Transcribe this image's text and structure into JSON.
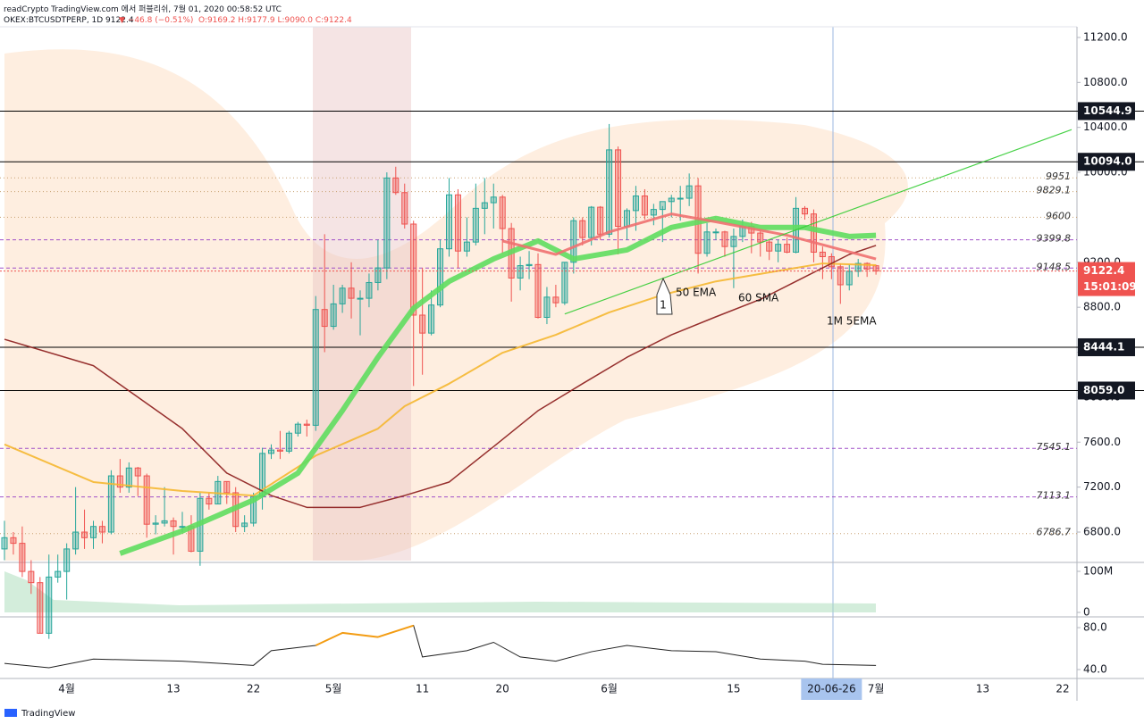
{
  "chart_data": {
    "type": "candlestick",
    "title": "readCrypto TradingView.com 에서 퍼블리쉬, 7월 01, 2020 00:58:52 UTC",
    "symbol": "OKEX:BTCUSDTPERP, 1D 9122.4",
    "change": "▼ −46.8 (−0.51%)",
    "ohlc_text": "O:9169.2 H:9177.9 L:9090.0 C:9122.4",
    "footer": "TradingView",
    "up_color": "#26a69a",
    "down_color": "#ef5350",
    "ylim": [
      6546,
      11295
    ],
    "yticks": [
      {
        "value": 11200,
        "label": "11200.0"
      },
      {
        "value": 10800,
        "label": "10800.0"
      },
      {
        "value": 10400,
        "label": "10400.0"
      },
      {
        "value": 10000,
        "label": "10000.0"
      },
      {
        "value": 9200,
        "label": "9200.0"
      },
      {
        "value": 8800,
        "label": "8800.0"
      },
      {
        "value": 8400,
        "label": "8400.0"
      },
      {
        "value": 8000,
        "label": "8000.0"
      },
      {
        "value": 7600,
        "label": "7600.0"
      },
      {
        "value": 7200,
        "label": "7200.0"
      },
      {
        "value": 6800,
        "label": "6800.0"
      }
    ],
    "categories": [
      null,
      null,
      null,
      null,
      null,
      null,
      null,
      "4월",
      null,
      null,
      null,
      null,
      null,
      null,
      null,
      null,
      null,
      null,
      null,
      "13",
      null,
      null,
      null,
      null,
      null,
      null,
      null,
      null,
      "22",
      null,
      null,
      null,
      null,
      null,
      null,
      null,
      null,
      "5월",
      null,
      null,
      null,
      null,
      null,
      null,
      null,
      null,
      null,
      "11",
      null,
      null,
      null,
      null,
      null,
      null,
      null,
      null,
      "20",
      null,
      null,
      null,
      null,
      null,
      null,
      null,
      null,
      null,
      null,
      null,
      "6월",
      null,
      null,
      null,
      null,
      null,
      null,
      null,
      null,
      null,
      null,
      null,
      null,
      null,
      "15",
      null,
      null,
      null,
      null,
      null,
      null,
      null,
      null,
      null,
      null,
      "20-06-26",
      null,
      null,
      null,
      null,
      "7월",
      null,
      null,
      null,
      null,
      null,
      null,
      null,
      null,
      null,
      null,
      null,
      "13",
      null,
      null,
      null,
      null,
      null,
      null,
      null,
      null,
      "22",
      null
    ],
    "ohlc": [
      [
        6650,
        6900,
        6550,
        6750
      ],
      [
        6750,
        6800,
        6600,
        6700
      ],
      [
        6700,
        6850,
        6400,
        6450
      ],
      [
        6450,
        6550,
        6250,
        6350
      ],
      [
        6350,
        6400,
        5900,
        5900
      ],
      [
        5900,
        6600,
        5850,
        6400
      ],
      [
        6400,
        6600,
        6350,
        6450
      ],
      [
        6450,
        6700,
        6200,
        6650
      ],
      [
        6650,
        7200,
        6600,
        6800
      ],
      [
        6800,
        7000,
        6650,
        6750
      ],
      [
        6750,
        6900,
        6650,
        6850
      ],
      [
        6850,
        6900,
        6700,
        6800
      ],
      [
        6800,
        7350,
        6780,
        7300
      ],
      [
        7300,
        7450,
        7150,
        7200
      ],
      [
        7200,
        7420,
        7150,
        7370
      ],
      [
        7370,
        7380,
        7120,
        7300
      ],
      [
        7300,
        7320,
        6750,
        6870
      ],
      [
        6870,
        6950,
        6780,
        6880
      ],
      [
        6880,
        7200,
        6850,
        6900
      ],
      [
        6900,
        6930,
        6600,
        6850
      ],
      [
        6850,
        6980,
        6800,
        6850
      ],
      [
        6850,
        6950,
        6620,
        6630
      ],
      [
        6630,
        7150,
        6500,
        7100
      ],
      [
        7100,
        7150,
        7000,
        7050
      ],
      [
        7050,
        7300,
        7050,
        7250
      ],
      [
        7250,
        7250,
        7050,
        7150
      ],
      [
        7150,
        7200,
        6800,
        6850
      ],
      [
        6850,
        6950,
        6800,
        6880
      ],
      [
        6880,
        7150,
        6850,
        7120
      ],
      [
        7120,
        7550,
        7000,
        7500
      ],
      [
        7500,
        7580,
        7450,
        7530
      ],
      [
        7530,
        7700,
        7450,
        7520
      ],
      [
        7520,
        7700,
        7500,
        7680
      ],
      [
        7680,
        7780,
        7650,
        7760
      ],
      [
        7760,
        7800,
        7650,
        7750
      ],
      [
        7750,
        8900,
        7700,
        8780
      ],
      [
        8780,
        9450,
        8400,
        8630
      ],
      [
        8630,
        9000,
        8600,
        8830
      ],
      [
        8830,
        9000,
        8750,
        8970
      ],
      [
        8970,
        9200,
        8700,
        8880
      ],
      [
        8880,
        8950,
        8550,
        8880
      ],
      [
        8880,
        9100,
        8800,
        9020
      ],
      [
        9020,
        9400,
        8950,
        9150
      ],
      [
        9150,
        10000,
        9050,
        9950
      ],
      [
        9950,
        10050,
        9800,
        9820
      ],
      [
        9820,
        9900,
        9500,
        9540
      ],
      [
        9540,
        9570,
        8100,
        8730
      ],
      [
        8730,
        9150,
        8200,
        8570
      ],
      [
        8570,
        8950,
        8550,
        8820
      ],
      [
        8820,
        9400,
        8800,
        9320
      ],
      [
        9320,
        9950,
        9250,
        9800
      ],
      [
        9800,
        9850,
        9150,
        9300
      ],
      [
        9300,
        9600,
        9250,
        9380
      ],
      [
        9380,
        9900,
        9350,
        9680
      ],
      [
        9680,
        9950,
        9450,
        9730
      ],
      [
        9730,
        9900,
        9500,
        9780
      ],
      [
        9780,
        9800,
        9280,
        9500
      ],
      [
        9500,
        9550,
        8850,
        9060
      ],
      [
        9060,
        9250,
        8950,
        9170
      ],
      [
        9170,
        9300,
        9050,
        9180
      ],
      [
        9180,
        9280,
        8700,
        8710
      ],
      [
        8710,
        8980,
        8650,
        8890
      ],
      [
        8890,
        9000,
        8800,
        8840
      ],
      [
        8840,
        9200,
        8820,
        9200
      ],
      [
        9200,
        9600,
        9100,
        9570
      ],
      [
        9570,
        9600,
        9350,
        9420
      ],
      [
        9420,
        9700,
        9350,
        9690
      ],
      [
        9690,
        9700,
        9400,
        9450
      ],
      [
        9450,
        10430,
        9420,
        10200
      ],
      [
        10200,
        10230,
        9270,
        9520
      ],
      [
        9520,
        9680,
        9400,
        9660
      ],
      [
        9660,
        9880,
        9480,
        9790
      ],
      [
        9790,
        9850,
        9580,
        9620
      ],
      [
        9620,
        9720,
        9530,
        9670
      ],
      [
        9670,
        9700,
        9380,
        9740
      ],
      [
        9740,
        9800,
        9600,
        9770
      ],
      [
        9770,
        9880,
        9570,
        9770
      ],
      [
        9770,
        9990,
        9700,
        9880
      ],
      [
        9880,
        9950,
        9100,
        9280
      ],
      [
        9280,
        9550,
        9250,
        9470
      ],
      [
        9470,
        9500,
        9400,
        9470
      ],
      [
        9470,
        9480,
        9250,
        9340
      ],
      [
        9340,
        9500,
        8970,
        9430
      ],
      [
        9430,
        9580,
        9380,
        9520
      ],
      [
        9520,
        9560,
        9280,
        9460
      ],
      [
        9460,
        9480,
        9250,
        9380
      ],
      [
        9380,
        9400,
        9220,
        9300
      ],
      [
        9300,
        9400,
        9200,
        9360
      ],
      [
        9360,
        9420,
        9280,
        9290
      ],
      [
        9290,
        9780,
        9280,
        9680
      ],
      [
        9680,
        9700,
        9580,
        9630
      ],
      [
        9630,
        9670,
        9200,
        9290
      ],
      [
        9290,
        9340,
        9050,
        9250
      ],
      [
        9250,
        9280,
        9050,
        9160
      ],
      [
        9160,
        9190,
        8830,
        9000
      ],
      [
        9000,
        9180,
        8950,
        9120
      ],
      [
        9120,
        9230,
        9070,
        9190
      ],
      [
        9190,
        9200,
        9070,
        9140
      ],
      [
        9169.2,
        9177.9,
        9090.0,
        9122.4
      ],
      null,
      null,
      null,
      null,
      null,
      null,
      null,
      null,
      null,
      null,
      null,
      null,
      null,
      null,
      null,
      null,
      null,
      null,
      null,
      null,
      null,
      null
    ],
    "levels": [
      {
        "value": 10544.9,
        "style": "box"
      },
      {
        "value": 10094,
        "label": "10094.0",
        "style": "box"
      },
      {
        "value": 8444.1,
        "style": "box"
      },
      {
        "value": 8059,
        "label": "8059.0",
        "style": "box"
      },
      {
        "value": 9951,
        "style": "dotted"
      },
      {
        "value": 9829.1,
        "style": "dotted"
      },
      {
        "value": 9600,
        "style": "dotted"
      },
      {
        "value": 6786.7,
        "style": "dotted"
      },
      {
        "value": 9399.8,
        "style": "dashed"
      },
      {
        "value": 9148.5,
        "style": "dashed"
      },
      {
        "value": 7545.1,
        "style": "dashed"
      },
      {
        "value": 7113.1,
        "style": "dashed"
      }
    ],
    "last_price": {
      "value": 9122.4,
      "countdown": "15:01:09",
      "color": "#ef5350"
    },
    "lines": [
      {
        "color": "#f5b731",
        "width": 2,
        "x": [
          0,
          10,
          20,
          28,
          35,
          42,
          45,
          50,
          56,
          62,
          68,
          74,
          80,
          86,
          92,
          98
        ],
        "values": [
          7580,
          7245,
          7165,
          7125,
          7480,
          7720,
          7920,
          8120,
          8395,
          8555,
          8754,
          8910,
          9030,
          9110,
          9190,
          9175
        ]
      },
      {
        "color": "#8b1a1a",
        "width": 1.5,
        "x": [
          0,
          10,
          20,
          25,
          30,
          34,
          40,
          45,
          50,
          55,
          60,
          65,
          70,
          75,
          80,
          85,
          90,
          95,
          98
        ],
        "values": [
          8515,
          8280,
          7720,
          7325,
          7125,
          7020,
          7020,
          7125,
          7245,
          7560,
          7880,
          8120,
          8355,
          8555,
          8715,
          8870,
          9070,
          9270,
          9350
        ]
      },
      {
        "color": "#5fdd5f",
        "width": 6,
        "x": [
          13,
          20,
          28,
          33,
          38,
          42,
          46,
          50,
          55,
          60,
          64,
          70,
          75,
          80,
          85,
          90,
          95,
          98
        ],
        "values": [
          6610,
          6810,
          7085,
          7325,
          7880,
          8355,
          8790,
          9030,
          9230,
          9390,
          9230,
          9310,
          9510,
          9590,
          9510,
          9510,
          9430,
          9440
        ]
      },
      {
        "color": "#f07070",
        "width": 3,
        "x": [
          56,
          62,
          68,
          75,
          80,
          88,
          98
        ],
        "values": [
          9390,
          9270,
          9470,
          9630,
          9560,
          9440,
          9230
        ]
      },
      {
        "color": "#33cc33",
        "width": 1.2,
        "x": [
          63,
          120
        ],
        "values": [
          8740,
          10380
        ]
      }
    ],
    "annotations": [
      "1",
      "50 EMA",
      "60 SMA",
      "1M 5EMA"
    ],
    "volume": {
      "ylim": [
        -8700000,
        117400000
      ],
      "yticks": [
        {
          "value": 100000000,
          "label": "100M"
        },
        0
      ]
    },
    "rsi": {
      "ylim": [
        31.5,
        89.4
      ],
      "yticks": [
        {
          "value": 80,
          "label": "80.0"
        },
        {
          "value": 40,
          "label": "40.0"
        }
      ],
      "hot_color": "#f39c12",
      "x": [
        0,
        5,
        10,
        20,
        28,
        30,
        35,
        38,
        42,
        46,
        47,
        52,
        55,
        58,
        62,
        66,
        70,
        75,
        80,
        85,
        90,
        92,
        98
      ],
      "values": [
        45.9,
        41.7,
        50,
        48,
        44,
        58,
        63,
        75,
        71,
        82,
        52,
        58,
        66,
        52,
        48,
        57,
        63,
        58,
        57,
        50,
        48,
        45,
        44
      ]
    }
  }
}
